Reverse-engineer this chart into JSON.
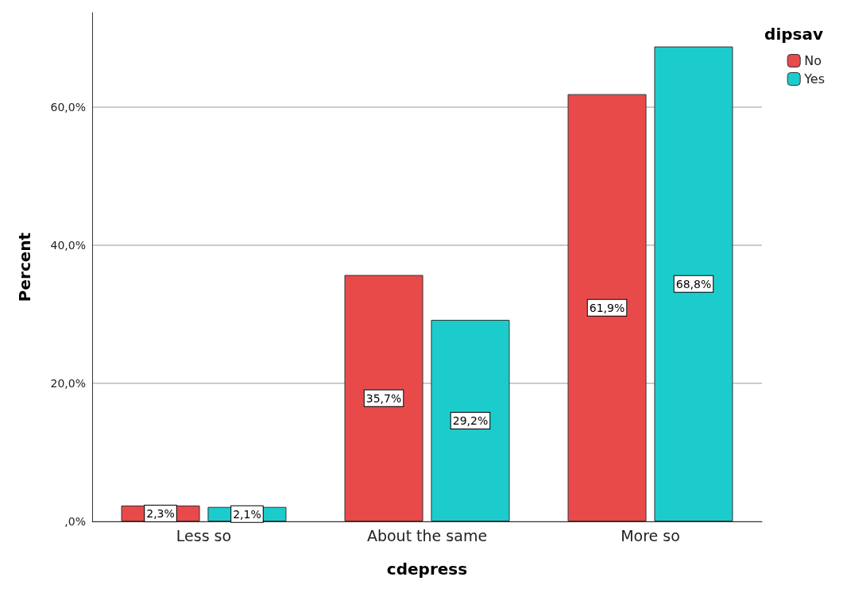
{
  "chart_data": {
    "type": "bar",
    "xlabel": "cdepress",
    "ylabel": "Percent",
    "legend_title": "dipsav",
    "categories": [
      "Less so",
      "About the same",
      "More so"
    ],
    "series": [
      {
        "name": "No",
        "color": "#e84a4a",
        "values": [
          2.3,
          35.7,
          61.9
        ],
        "value_labels": [
          "2,3%",
          "35,7%",
          "61,9%"
        ]
      },
      {
        "name": "Yes",
        "color": "#1ccccc",
        "values": [
          2.1,
          29.2,
          68.8
        ],
        "value_labels": [
          "2,1%",
          "29,2%",
          "68,8%"
        ]
      }
    ],
    "ylim": [
      0,
      73.7
    ],
    "yticks": [
      {
        "value": 0,
        "label": ",0%"
      },
      {
        "value": 20,
        "label": "20,0%"
      },
      {
        "value": 40,
        "label": "40,0%"
      },
      {
        "value": 60,
        "label": "60,0%"
      }
    ],
    "grid": "y",
    "legend": "top right"
  }
}
